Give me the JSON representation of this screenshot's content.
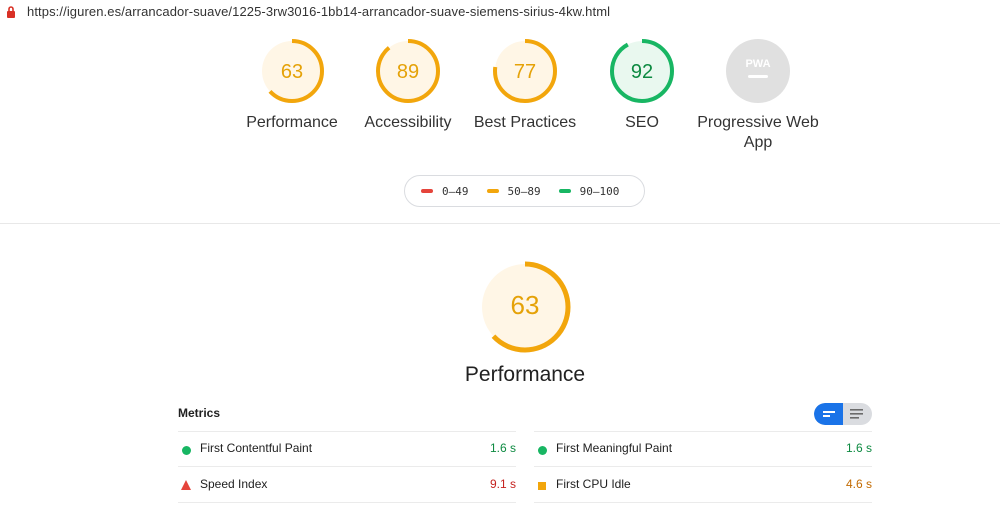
{
  "browser": {
    "url": "https://iguren.es/arrancador-suave/1225-3rw3016-1bb14-arrancador-suave-siemens-sirius-4kw.html"
  },
  "colors": {
    "fail": "#e5443b",
    "average": "#f2a60c",
    "pass": "#18b663",
    "na": "#cccccc"
  },
  "categories": [
    {
      "score": "63",
      "label": "Performance",
      "level": "average",
      "fraction": 0.63
    },
    {
      "score": "89",
      "label": "Accessibility",
      "level": "average",
      "fraction": 0.89
    },
    {
      "score": "77",
      "label": "Best Practices",
      "level": "average",
      "fraction": 0.77
    },
    {
      "score": "92",
      "label": "SEO",
      "level": "pass",
      "fraction": 0.92
    },
    {
      "score": "",
      "label": "Progressive Web App",
      "level": "na",
      "badge": "PWA"
    }
  ],
  "legend": [
    {
      "range": "0–49",
      "level": "fail"
    },
    {
      "range": "50–89",
      "level": "average"
    },
    {
      "range": "90–100",
      "level": "pass"
    }
  ],
  "performance": {
    "score": "63",
    "fraction": 0.63,
    "title": "Performance"
  },
  "metrics": {
    "heading": "Metrics",
    "view_toggle": [
      "collapsed-view-icon",
      "expanded-view-icon"
    ],
    "items": [
      {
        "label": "First Contentful Paint",
        "value": "1.6 s",
        "level": "pass",
        "icon": "circle"
      },
      {
        "label": "First Meaningful Paint",
        "value": "1.6 s",
        "level": "pass",
        "icon": "circle"
      },
      {
        "label": "Speed Index",
        "value": "9.1 s",
        "level": "fail",
        "icon": "triangle"
      },
      {
        "label": "First CPU Idle",
        "value": "4.6 s",
        "level": "average",
        "icon": "square"
      }
    ]
  }
}
